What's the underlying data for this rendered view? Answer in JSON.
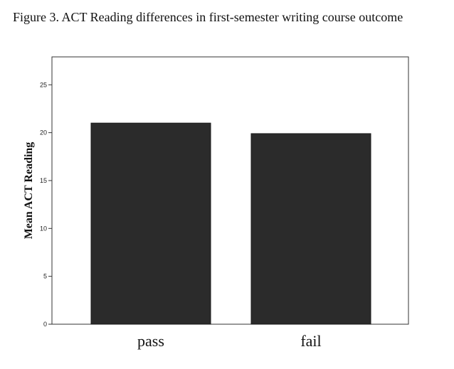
{
  "figure_title": "Figure 3. ACT Reading differences in first-semester writing course outcome",
  "chart_data": {
    "type": "bar",
    "categories": [
      "pass",
      "fail"
    ],
    "values": [
      21.0,
      19.9
    ],
    "ylabel": "Mean ACT Reading",
    "xlabel": "",
    "ylim": [
      0,
      28
    ],
    "yticks": [
      0,
      5,
      10,
      15,
      20,
      25
    ],
    "grid": false,
    "bar_color": "#2b2b2b"
  }
}
